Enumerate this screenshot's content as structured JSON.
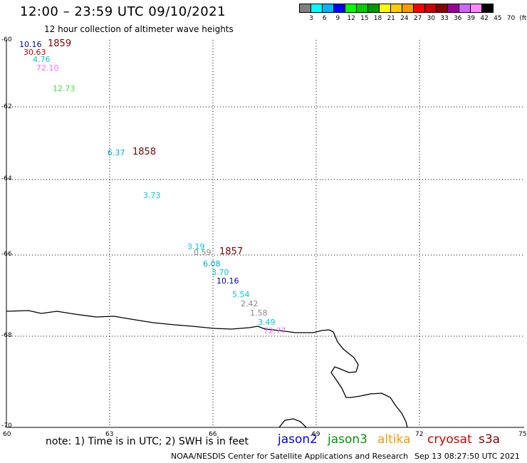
{
  "header": {
    "title": "12:00 – 23:59 UTC 09/10/2021",
    "subtitle": "12 hour collection of altimeter wave heights"
  },
  "colorbar": {
    "colors": [
      "#808080",
      "#00ffff",
      "#00b4ff",
      "#0000ff",
      "#00ff00",
      "#00cc00",
      "#009900",
      "#ffff00",
      "#ffcc00",
      "#ff9900",
      "#ff0000",
      "#cc0000",
      "#880000",
      "#990099",
      "#cc66ff",
      "#ff88ff",
      "#000000"
    ],
    "labels": [
      "3",
      "6",
      "9",
      "12",
      "15",
      "18",
      "21",
      "24",
      "27",
      "30",
      "33",
      "36",
      "39",
      "42",
      "45",
      "70",
      "(ft)"
    ]
  },
  "axes": {
    "lat_labels": [
      "-60",
      "-62",
      "-64",
      "-66",
      "-68",
      "-70"
    ],
    "lon_labels": [
      "60",
      "63",
      "66",
      "69",
      "72",
      "75"
    ],
    "grid": "dotted"
  },
  "observations": [
    {
      "text": "10.16",
      "color": "#0000aa"
    },
    {
      "text": "30.63",
      "color": "#cc0000"
    },
    {
      "text": "4.76",
      "color": "#00cccc"
    },
    {
      "text": "72.10",
      "color": "#ff66ff"
    },
    {
      "text": "12.73",
      "color": "#44dd44"
    },
    {
      "text": "6.37",
      "color": "#00aacc"
    },
    {
      "text": "3.73",
      "color": "#00cccc"
    },
    {
      "text": "3.19",
      "color": "#00cccc"
    },
    {
      "text": "0.59",
      "color": "#888888"
    },
    {
      "text": "6.08",
      "color": "#00aacc"
    },
    {
      "text": "3.70",
      "color": "#00cccc"
    },
    {
      "text": "10.16",
      "color": "#0000aa"
    },
    {
      "text": "5.54",
      "color": "#00cccc"
    },
    {
      "text": "2.42",
      "color": "#888888"
    },
    {
      "text": "1.58",
      "color": "#888888"
    },
    {
      "text": "3.49",
      "color": "#00cccc"
    },
    {
      "text": "72.77",
      "color": "#ff66ff"
    }
  ],
  "time_labels": [
    "1859",
    "1858",
    "1857"
  ],
  "note": "note:  1) Time is in UTC;  2) SWH is in feet",
  "legend": [
    {
      "name": "jason2",
      "color": "#0000ff"
    },
    {
      "name": "jason3",
      "color": "#009900"
    },
    {
      "name": "altika",
      "color": "#ff9900"
    },
    {
      "name": "cryosat",
      "color": "#cc0000"
    },
    {
      "name": "s3a",
      "color": "#880000"
    }
  ],
  "footer": {
    "credit": "NOAA/NESDIS Center for Satellite Applications and Research",
    "timestamp": "Sep 13 08:27:50 UTC 2021"
  }
}
